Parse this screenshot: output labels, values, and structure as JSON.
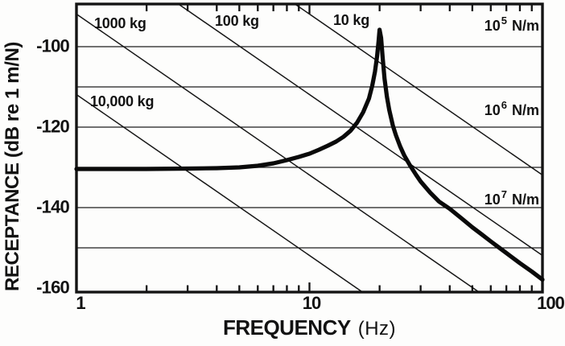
{
  "axes": {
    "y_title": "RECEPTANCE (dB re 1 m/N)",
    "x_title_main": "FREQUENCY",
    "x_title_unit": "(Hz)",
    "x_tick_labels": [
      "1",
      "10",
      "100"
    ],
    "y_tick_labels": [
      "-100",
      "-120",
      "-140",
      "-160"
    ]
  },
  "chart_data": {
    "type": "line",
    "title": "",
    "xlabel": "FREQUENCY (Hz)",
    "ylabel": "RECEPTANCE (dB re 1 m/N)",
    "x_scale": "log",
    "grid": true,
    "xlim": [
      1,
      100
    ],
    "ylim": [
      -161,
      -89
    ],
    "x_ticks": [
      1,
      10,
      100
    ],
    "x_minor_ticks": [
      2,
      3,
      4,
      5,
      6,
      7,
      8,
      9,
      20,
      30,
      40,
      50,
      60,
      70,
      80,
      90
    ],
    "y_ticks": [
      -100,
      -120,
      -140,
      -160
    ],
    "horizontal_gridlines_dB": [
      -100,
      -110,
      -120,
      -130,
      -140,
      -150
    ],
    "mass_lines": [
      {
        "label": "1000 kg",
        "mass_kg": 1000,
        "dB_at_1Hz": -91.9,
        "slope_dB_per_decade": -40
      },
      {
        "label": "100 kg",
        "mass_kg": 100,
        "dB_at_1Hz": -71.9,
        "slope_dB_per_decade": -40
      },
      {
        "label": "10 kg",
        "mass_kg": 10,
        "dB_at_1Hz": -51.9,
        "slope_dB_per_decade": -40
      },
      {
        "label": "10,000 kg",
        "mass_kg": 10000,
        "dB_at_1Hz": -111.9,
        "slope_dB_per_decade": -40
      }
    ],
    "stiffness_lines": [
      {
        "base": "10",
        "exp": "5",
        "unit": "N/m",
        "stiffness_N_per_m": 100000,
        "dB": -100
      },
      {
        "base": "10",
        "exp": "6",
        "unit": "N/m",
        "stiffness_N_per_m": 1000000,
        "dB": -120
      },
      {
        "base": "10",
        "exp": "7",
        "unit": "N/m",
        "stiffness_N_per_m": 10000000,
        "dB": -140
      }
    ],
    "series": [
      {
        "name": "receptance-frf-curve",
        "resonance_hz": 20,
        "static_level_dB": -130.4,
        "peak_level_dB": -95.8,
        "points_hz_dB": [
          [
            1,
            -130.4
          ],
          [
            1.5,
            -130.4
          ],
          [
            2,
            -130.4
          ],
          [
            3,
            -130.3
          ],
          [
            4,
            -130.2
          ],
          [
            5,
            -130.0
          ],
          [
            6,
            -129.6
          ],
          [
            7,
            -129.0
          ],
          [
            8,
            -128.2
          ],
          [
            9,
            -127.4
          ],
          [
            10,
            -126.6
          ],
          [
            11,
            -125.6
          ],
          [
            12,
            -124.6
          ],
          [
            13,
            -123.6
          ],
          [
            14,
            -122.4
          ],
          [
            15,
            -120.9
          ],
          [
            16,
            -118.9
          ],
          [
            17,
            -116.3
          ],
          [
            18,
            -112.9
          ],
          [
            18.6,
            -109.7
          ],
          [
            19.1,
            -106.2
          ],
          [
            19.5,
            -102.4
          ],
          [
            19.8,
            -98.6
          ],
          [
            20,
            -95.8
          ],
          [
            20.3,
            -97.8
          ],
          [
            20.6,
            -102.6
          ],
          [
            21,
            -108.0
          ],
          [
            21.5,
            -112.4
          ],
          [
            22,
            -115.7
          ],
          [
            22.8,
            -119.6
          ],
          [
            23.5,
            -122.0
          ],
          [
            24.5,
            -124.8
          ],
          [
            25.5,
            -127.0
          ],
          [
            27,
            -129.5
          ],
          [
            28.7,
            -131.9
          ],
          [
            30,
            -133.5
          ],
          [
            33,
            -136.3
          ],
          [
            36,
            -138.5
          ],
          [
            40,
            -140.3
          ],
          [
            45,
            -142.7
          ],
          [
            50,
            -144.9
          ],
          [
            55,
            -146.7
          ],
          [
            60,
            -148.4
          ],
          [
            65,
            -149.9
          ],
          [
            70,
            -151.3
          ],
          [
            80,
            -153.8
          ],
          [
            90,
            -155.9
          ],
          [
            100,
            -157.9
          ]
        ]
      }
    ]
  }
}
